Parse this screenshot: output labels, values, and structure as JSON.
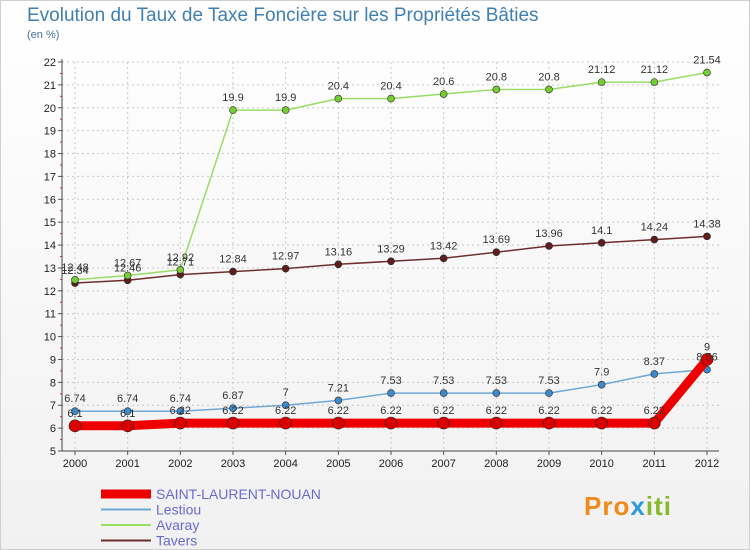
{
  "chart_data": {
    "type": "line",
    "title": "Evolution du Taux de Taxe Foncière sur les Propriétés Bâties",
    "ylabel": "(en %)",
    "xlabel": "",
    "categories": [
      "2000",
      "2001",
      "2002",
      "2003",
      "2004",
      "2005",
      "2006",
      "2007",
      "2008",
      "2009",
      "2010",
      "2011",
      "2012"
    ],
    "ylim": [
      5,
      22
    ],
    "yticks": [
      "5",
      "6",
      "7",
      "8",
      "9",
      "10",
      "11",
      "12",
      "13",
      "14",
      "15",
      "16",
      "17",
      "18",
      "19",
      "20",
      "21",
      "22"
    ],
    "series": [
      {
        "name": "SAINT-LAURENT-NOUAN",
        "color": "#ee0000",
        "marker": "#d90000",
        "values": [
          6.1,
          6.1,
          6.22,
          6.22,
          6.22,
          6.22,
          6.22,
          6.22,
          6.22,
          6.22,
          6.22,
          6.22,
          9
        ],
        "labels": [
          "6.1",
          "6.1",
          "6.22",
          "6.22",
          "6.22",
          "6.22",
          "6.22",
          "6.22",
          "6.22",
          "6.22",
          "6.22",
          "6.22",
          "9"
        ]
      },
      {
        "name": "Lestiou",
        "color": "#6fa8d6",
        "marker": "#3d89c9",
        "values": [
          6.74,
          6.74,
          6.74,
          6.87,
          7,
          7.21,
          7.53,
          7.53,
          7.53,
          7.53,
          7.9,
          8.37,
          8.56
        ],
        "labels": [
          "6.74",
          "6.74",
          "6.74",
          "6.87",
          "7",
          "7.21",
          "7.53",
          "7.53",
          "7.53",
          "7.53",
          "7.9",
          "8.37",
          "8.56"
        ]
      },
      {
        "name": "Avaray",
        "color": "#99dd66",
        "marker": "#77cc33",
        "values": [
          12.48,
          12.67,
          12.92,
          19.9,
          19.9,
          20.4,
          20.4,
          20.6,
          20.8,
          20.8,
          21.12,
          21.12,
          21.54
        ],
        "labels": [
          "12.48",
          "12.67",
          "12.92",
          "19.9",
          "19.9",
          "20.4",
          "20.4",
          "20.6",
          "20.8",
          "20.8",
          "21.12",
          "21.12",
          "21.54"
        ]
      },
      {
        "name": "Tavers",
        "color": "#6e2e2e",
        "marker": "#5e1e1e",
        "values": [
          12.34,
          12.46,
          12.71,
          12.84,
          12.97,
          13.16,
          13.29,
          13.42,
          13.69,
          13.96,
          14.1,
          14.24,
          14.38
        ],
        "labels": [
          "12.34",
          "12.46",
          "12.71",
          "12.84",
          "12.97",
          "13.16",
          "13.29",
          "13.42",
          "13.69",
          "13.96",
          "14.1",
          "14.24",
          "14.38"
        ]
      }
    ]
  },
  "brand": {
    "part1": "Pro",
    "part2": "x",
    "part3": "iti"
  }
}
